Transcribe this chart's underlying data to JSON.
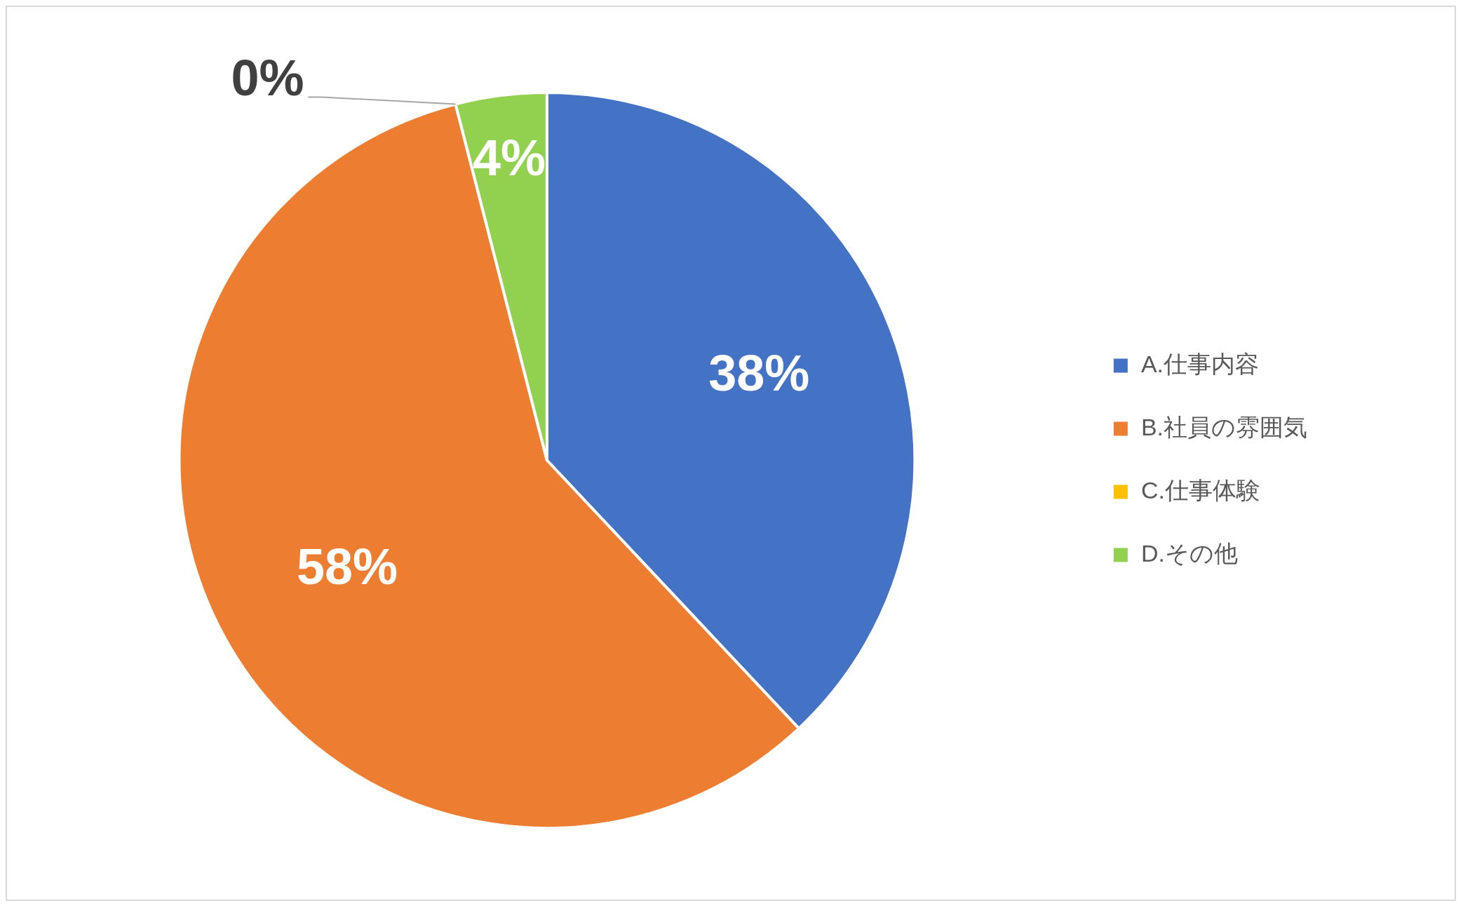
{
  "chart_data": {
    "type": "pie",
    "categories": [
      "A.仕事内容",
      "B.社員の雰囲気",
      "C.仕事体験",
      "D.その他"
    ],
    "values": [
      38,
      58,
      0,
      4
    ],
    "colors": [
      "#4472c4",
      "#ed7d31",
      "#ffc000",
      "#92d050"
    ],
    "value_labels": [
      "38%",
      "58%",
      "0%",
      "4%"
    ],
    "legend": "right"
  }
}
